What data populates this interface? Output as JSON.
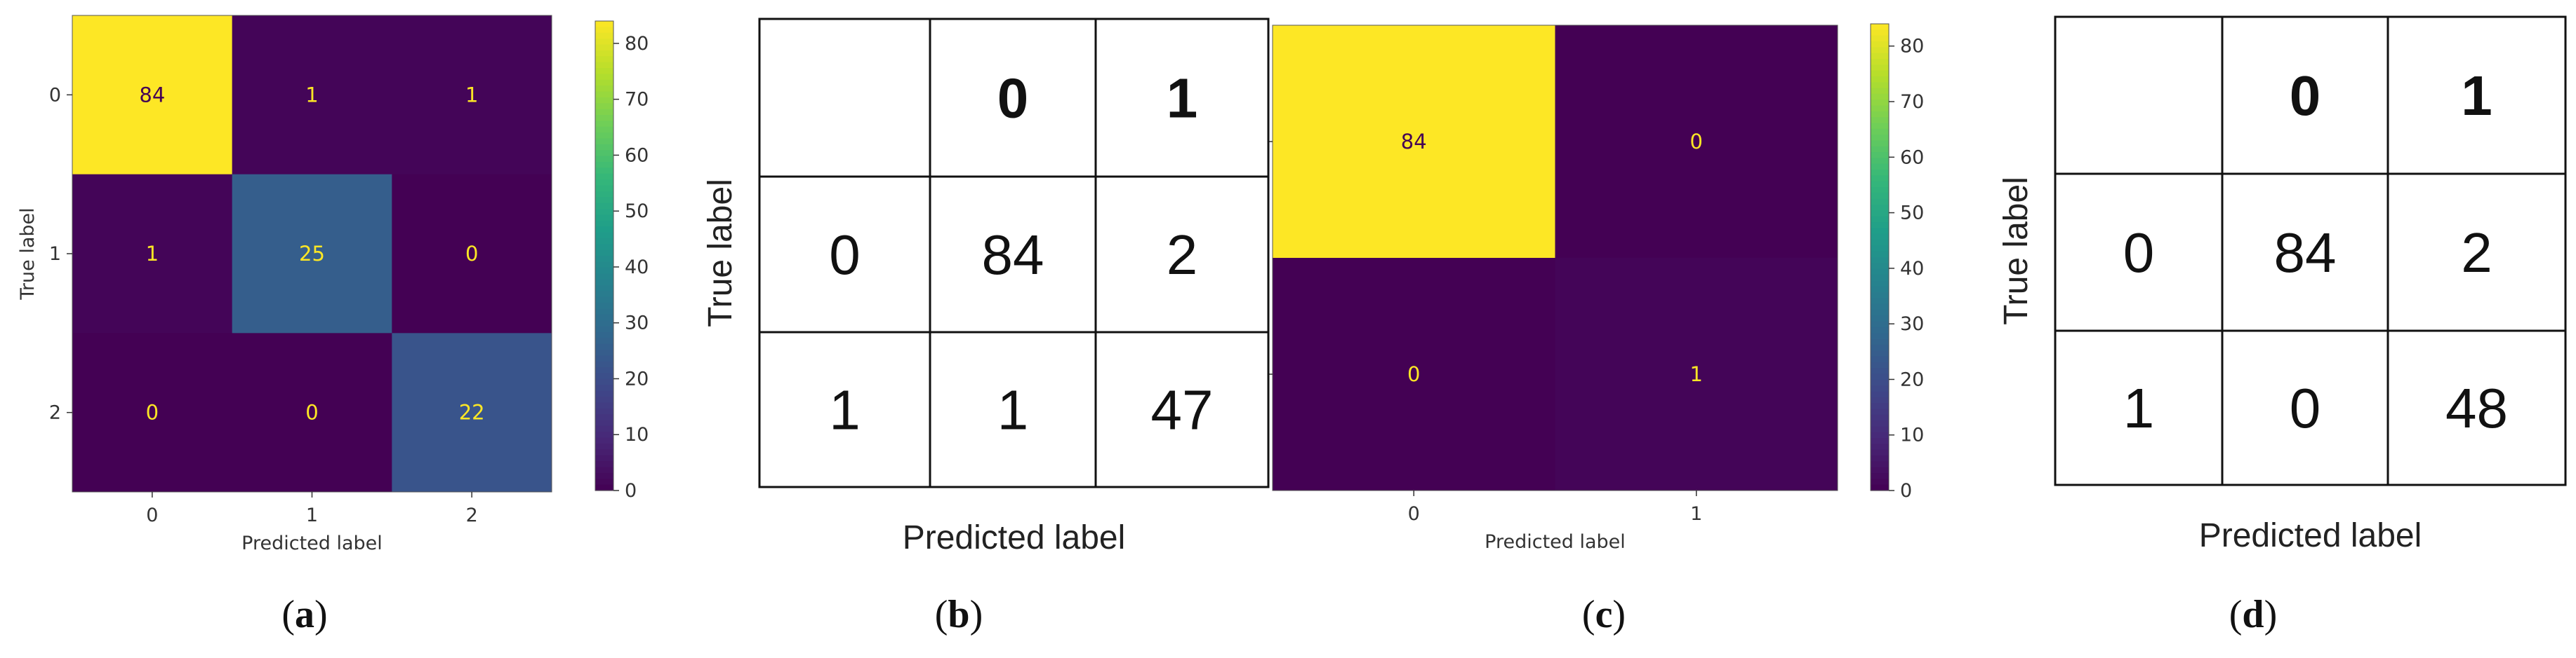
{
  "chart_data": [
    {
      "type": "heatmap",
      "panel_label": "a",
      "row_labels": [
        "0",
        "1",
        "2"
      ],
      "col_labels": [
        "0",
        "1",
        "2"
      ],
      "values": [
        [
          84,
          1,
          1
        ],
        [
          1,
          25,
          0
        ],
        [
          0,
          0,
          22
        ]
      ],
      "xlabel": "Predicted label",
      "ylabel": "True label",
      "colorbar": {
        "ticks": [
          0,
          10,
          20,
          30,
          40,
          50,
          60,
          70,
          80
        ],
        "range": [
          0,
          84
        ]
      }
    },
    {
      "type": "table",
      "panel_label": "b",
      "row_labels": [
        "0",
        "1"
      ],
      "col_labels": [
        "0",
        "1"
      ],
      "values": [
        [
          84,
          2
        ],
        [
          1,
          47
        ]
      ],
      "xlabel": "Predicted label",
      "ylabel": "True label"
    },
    {
      "type": "heatmap",
      "panel_label": "c",
      "row_labels": [
        "0",
        "1"
      ],
      "col_labels": [
        "0",
        "1"
      ],
      "values": [
        [
          84,
          0
        ],
        [
          0,
          1
        ]
      ],
      "xlabel": "Predicted label",
      "ylabel": "True label",
      "colorbar": {
        "ticks": [
          0,
          10,
          20,
          30,
          40,
          50,
          60,
          70,
          80
        ],
        "range": [
          0,
          84
        ]
      }
    },
    {
      "type": "table",
      "panel_label": "d",
      "row_labels": [
        "0",
        "1"
      ],
      "col_labels": [
        "0",
        "1"
      ],
      "values": [
        [
          84,
          2
        ],
        [
          0,
          48
        ]
      ],
      "xlabel": "Predicted label",
      "ylabel": "True label"
    }
  ],
  "colors": {
    "viridis": [
      "#440154",
      "#482878",
      "#3e4989",
      "#31688e",
      "#26828e",
      "#1f9e89",
      "#35b779",
      "#6ece58",
      "#b5de2b",
      "#fde725"
    ],
    "cell_text_light": "#fde725",
    "cell_text_dark": "#440154"
  }
}
